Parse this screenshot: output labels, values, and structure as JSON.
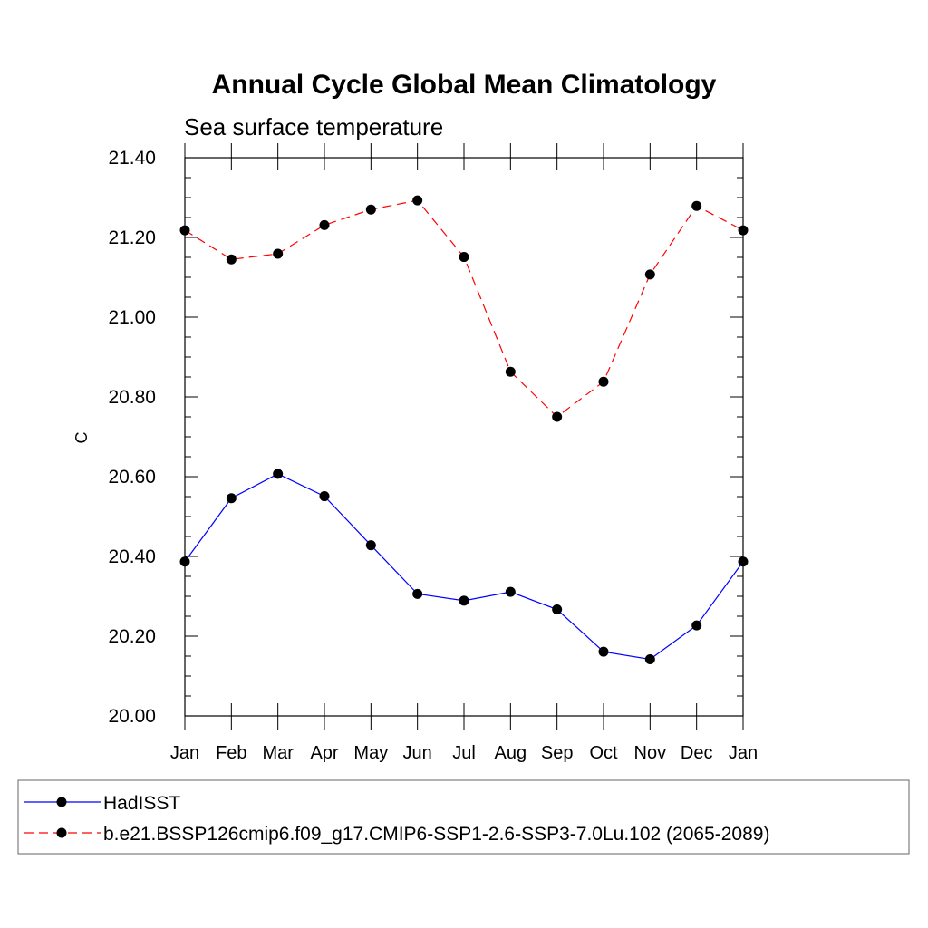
{
  "chart_data": {
    "type": "line",
    "title": "Annual Cycle Global Mean Climatology",
    "subtitle": "Sea surface temperature",
    "xlabel": "",
    "ylabel": "C",
    "categories": [
      "Jan",
      "Feb",
      "Mar",
      "Apr",
      "May",
      "Jun",
      "Jul",
      "Aug",
      "Sep",
      "Oct",
      "Nov",
      "Dec",
      "Jan"
    ],
    "ylim": [
      20.0,
      21.4
    ],
    "yticks": [
      "20.00",
      "20.20",
      "20.40",
      "20.60",
      "20.80",
      "21.00",
      "21.20",
      "21.40"
    ],
    "grid": false,
    "legend_position": "bottom",
    "series": [
      {
        "name": "HadISST",
        "color": "#0000ff",
        "dash": "solid",
        "values": [
          20.387,
          20.546,
          20.607,
          20.551,
          20.428,
          20.306,
          20.289,
          20.311,
          20.267,
          20.161,
          20.142,
          20.227,
          20.387
        ]
      },
      {
        "name": "b.e21.BSSP126cmip6.f09_g17.CMIP6-SSP1-2.6-SSP3-7.0Lu.102 (2065-2089)",
        "color": "#ff0000",
        "dash": "dashed",
        "values": [
          21.218,
          21.145,
          21.159,
          21.231,
          21.27,
          21.293,
          21.151,
          20.863,
          20.75,
          20.838,
          21.107,
          21.279,
          21.218
        ]
      }
    ]
  }
}
